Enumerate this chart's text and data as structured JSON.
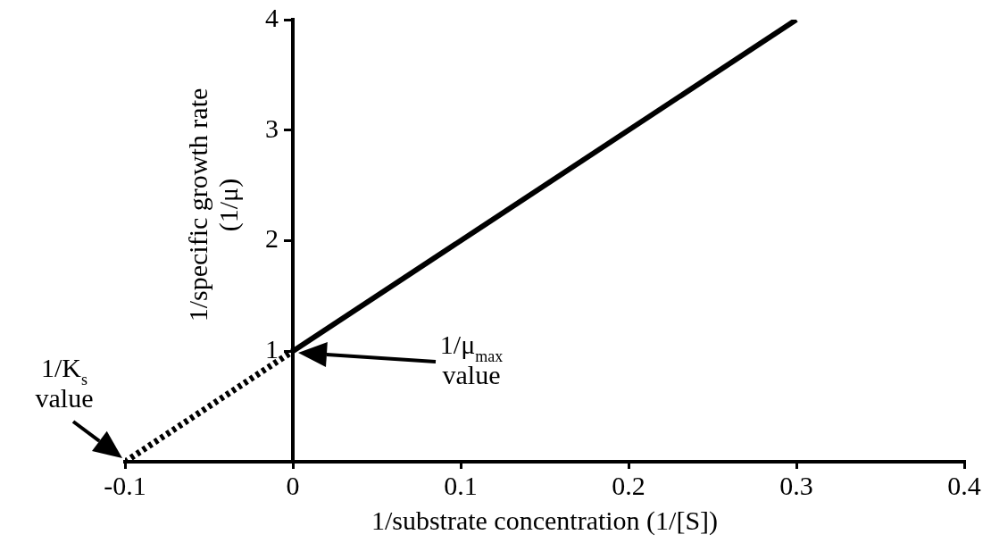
{
  "chart_data": {
    "type": "line",
    "xlabel": "1/substrate concentration (1/[S])",
    "ylabel": "1/specific growth rate\n(1/μ)",
    "xlim": [
      -0.1,
      0.4
    ],
    "xticks": [
      -0.1,
      0,
      0.1,
      0.2,
      0.3,
      0.4
    ],
    "ylim": [
      0,
      4
    ],
    "yticks": [
      1,
      2,
      3,
      4
    ],
    "grid": false,
    "legend": false,
    "marker": "none",
    "series": [
      {
        "x": [
          0,
          0.3
        ],
        "values": [
          1,
          4
        ],
        "color": "#000000",
        "line_style": "solid"
      },
      {
        "x": [
          -0.1,
          0
        ],
        "values": [
          0,
          1
        ],
        "color": "#000000",
        "line_style": "dotted"
      }
    ],
    "annotations": [
      {
        "text": "1/K$_{s}$\nvalue",
        "x": -0.1,
        "y": 0
      },
      "1/μ$_{max}$\nvalue"
    ]
  }
}
